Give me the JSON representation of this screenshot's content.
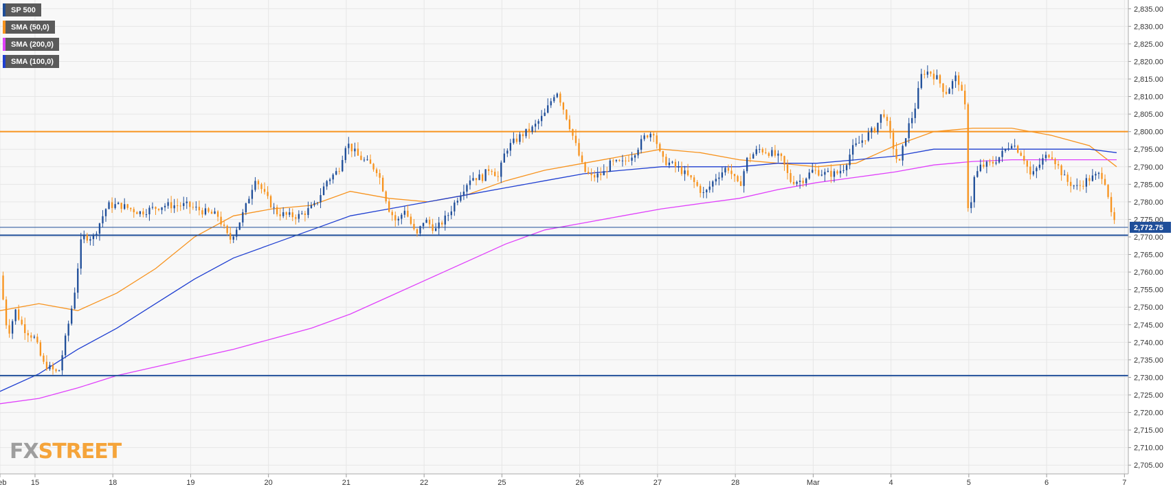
{
  "legend": [
    {
      "label": "SP 500",
      "color": "#1f4e99"
    },
    {
      "label": "SMA (50,0)",
      "color": "#f7931e"
    },
    {
      "label": "SMA (200,0)",
      "color": "#e040fb"
    },
    {
      "label": "SMA (100,0)",
      "color": "#1f3fd1"
    }
  ],
  "watermark": {
    "part1": "FX",
    "part2": "STREET"
  },
  "chart_data": {
    "type": "candlestick",
    "ylim": [
      2702.5,
      2837.5
    ],
    "y_ticks": [
      "2,705.00",
      "2,710.00",
      "2,715.00",
      "2,720.00",
      "2,725.00",
      "2,730.00",
      "2,735.00",
      "2,740.00",
      "2,745.00",
      "2,750.00",
      "2,755.00",
      "2,760.00",
      "2,765.00",
      "2,770.00",
      "2,775.00",
      "2,780.00",
      "2,785.00",
      "2,790.00",
      "2,795.00",
      "2,800.00",
      "2,805.00",
      "2,810.00",
      "2,815.00",
      "2,820.00",
      "2,825.00",
      "2,830.00",
      "2,835.00"
    ],
    "x_ticks": [
      {
        "label": "Feb",
        "pos": 0.0
      },
      {
        "label": "15",
        "pos": 0.45
      },
      {
        "label": "18",
        "pos": 1.45
      },
      {
        "label": "19",
        "pos": 2.45
      },
      {
        "label": "20",
        "pos": 3.45
      },
      {
        "label": "21",
        "pos": 4.45
      },
      {
        "label": "22",
        "pos": 5.45
      },
      {
        "label": "25",
        "pos": 6.45
      },
      {
        "label": "26",
        "pos": 7.45
      },
      {
        "label": "27",
        "pos": 8.45
      },
      {
        "label": "28",
        "pos": 9.45
      },
      {
        "label": "Mar",
        "pos": 10.45
      },
      {
        "label": "4",
        "pos": 11.45
      },
      {
        "label": "5",
        "pos": 12.45
      },
      {
        "label": "6",
        "pos": 13.45
      },
      {
        "label": "7",
        "pos": 14.45
      }
    ],
    "current_price": {
      "label": "2,772.75",
      "value": 2772.75
    },
    "horizontal_levels": [
      {
        "value": 2800,
        "color": "#f7931e"
      },
      {
        "value": 2770.5,
        "color": "#1f4e99"
      },
      {
        "value": 2730.5,
        "color": "#1f4e99"
      }
    ],
    "colors": {
      "up": "#1f4e99",
      "down": "#f7931e"
    },
    "anchors": [
      [
        0.0,
        2759
      ],
      [
        0.1,
        2742
      ],
      [
        0.2,
        2749
      ],
      [
        0.3,
        2744
      ],
      [
        0.45,
        2741
      ],
      [
        0.55,
        2734
      ],
      [
        0.75,
        2731
      ],
      [
        0.85,
        2742
      ],
      [
        0.95,
        2753
      ],
      [
        1.05,
        2770
      ],
      [
        1.2,
        2770
      ],
      [
        1.38,
        2779
      ],
      [
        1.55,
        2779
      ],
      [
        1.8,
        2777
      ],
      [
        2.1,
        2779
      ],
      [
        2.4,
        2779
      ],
      [
        2.65,
        2777
      ],
      [
        2.8,
        2776
      ],
      [
        2.95,
        2769
      ],
      [
        3.05,
        2773
      ],
      [
        3.15,
        2778
      ],
      [
        3.28,
        2787
      ],
      [
        3.4,
        2782
      ],
      [
        3.55,
        2777
      ],
      [
        3.7,
        2776
      ],
      [
        3.85,
        2776
      ],
      [
        4.05,
        2779
      ],
      [
        4.2,
        2786
      ],
      [
        4.35,
        2789
      ],
      [
        4.45,
        2797
      ],
      [
        4.6,
        2793
      ],
      [
        4.85,
        2789
      ],
      [
        5.0,
        2778
      ],
      [
        5.1,
        2774
      ],
      [
        5.2,
        2778
      ],
      [
        5.35,
        2770
      ],
      [
        5.45,
        2775
      ],
      [
        5.6,
        2772
      ],
      [
        5.75,
        2776
      ],
      [
        5.9,
        2782
      ],
      [
        6.05,
        2787
      ],
      [
        6.2,
        2787
      ],
      [
        6.3,
        2790
      ],
      [
        6.4,
        2787
      ],
      [
        6.5,
        2795
      ],
      [
        6.7,
        2799
      ],
      [
        6.85,
        2801
      ],
      [
        7.0,
        2805
      ],
      [
        7.15,
        2812
      ],
      [
        7.3,
        2803
      ],
      [
        7.4,
        2796
      ],
      [
        7.5,
        2789
      ],
      [
        7.6,
        2787
      ],
      [
        7.75,
        2788
      ],
      [
        7.85,
        2791
      ],
      [
        8.0,
        2791
      ],
      [
        8.15,
        2794
      ],
      [
        8.3,
        2799
      ],
      [
        8.4,
        2800
      ],
      [
        8.5,
        2792
      ],
      [
        8.6,
        2791
      ],
      [
        8.75,
        2789
      ],
      [
        8.9,
        2786
      ],
      [
        9.05,
        2782
      ],
      [
        9.2,
        2787
      ],
      [
        9.35,
        2790
      ],
      [
        9.5,
        2784
      ],
      [
        9.6,
        2792
      ],
      [
        9.75,
        2795
      ],
      [
        9.9,
        2794
      ],
      [
        10.05,
        2792
      ],
      [
        10.15,
        2786
      ],
      [
        10.3,
        2786
      ],
      [
        10.45,
        2789
      ],
      [
        10.6,
        2788
      ],
      [
        10.75,
        2788
      ],
      [
        10.85,
        2790
      ],
      [
        10.95,
        2795
      ],
      [
        11.1,
        2798
      ],
      [
        11.25,
        2801
      ],
      [
        11.35,
        2806
      ],
      [
        11.45,
        2798
      ],
      [
        11.55,
        2790
      ],
      [
        11.65,
        2800
      ],
      [
        11.75,
        2806
      ],
      [
        11.85,
        2817
      ],
      [
        11.95,
        2817
      ],
      [
        12.05,
        2815
      ],
      [
        12.15,
        2811
      ],
      [
        12.3,
        2816
      ],
      [
        12.4,
        2807
      ],
      [
        12.45,
        2772
      ],
      [
        12.5,
        2786
      ],
      [
        12.6,
        2790
      ],
      [
        12.75,
        2791
      ],
      [
        12.85,
        2793
      ],
      [
        13.0,
        2797
      ],
      [
        13.15,
        2793
      ],
      [
        13.25,
        2787
      ],
      [
        13.4,
        2792
      ],
      [
        13.5,
        2794
      ],
      [
        13.6,
        2790
      ],
      [
        13.7,
        2786
      ],
      [
        13.85,
        2784
      ],
      [
        13.95,
        2786
      ],
      [
        14.05,
        2787
      ],
      [
        14.15,
        2788
      ],
      [
        14.22,
        2785
      ],
      [
        14.28,
        2776
      ],
      [
        14.35,
        2773
      ]
    ],
    "sma": [
      {
        "name": "SMA (50,0)",
        "color": "#f7931e",
        "points": [
          [
            0.0,
            2749
          ],
          [
            0.5,
            2751
          ],
          [
            1.0,
            2749
          ],
          [
            1.5,
            2754
          ],
          [
            2.0,
            2761
          ],
          [
            2.5,
            2770
          ],
          [
            3.0,
            2776
          ],
          [
            3.5,
            2778
          ],
          [
            4.0,
            2779
          ],
          [
            4.5,
            2783
          ],
          [
            5.0,
            2781
          ],
          [
            5.5,
            2780
          ],
          [
            6.0,
            2782
          ],
          [
            6.5,
            2786
          ],
          [
            7.0,
            2789
          ],
          [
            7.5,
            2791
          ],
          [
            8.0,
            2793
          ],
          [
            8.5,
            2795
          ],
          [
            9.0,
            2794
          ],
          [
            9.5,
            2792
          ],
          [
            10.0,
            2791
          ],
          [
            10.5,
            2790
          ],
          [
            11.0,
            2791
          ],
          [
            11.5,
            2796
          ],
          [
            12.0,
            2800
          ],
          [
            12.5,
            2801
          ],
          [
            13.0,
            2801
          ],
          [
            13.5,
            2799
          ],
          [
            14.0,
            2796
          ],
          [
            14.35,
            2790
          ]
        ]
      },
      {
        "name": "SMA (100,0)",
        "color": "#1f3fd1",
        "points": [
          [
            0.0,
            2726
          ],
          [
            0.5,
            2731
          ],
          [
            1.0,
            2738
          ],
          [
            1.5,
            2744
          ],
          [
            2.0,
            2751
          ],
          [
            2.5,
            2758
          ],
          [
            3.0,
            2764
          ],
          [
            3.5,
            2768
          ],
          [
            4.0,
            2772
          ],
          [
            4.5,
            2776
          ],
          [
            5.0,
            2778
          ],
          [
            5.5,
            2780
          ],
          [
            6.0,
            2782
          ],
          [
            6.5,
            2784
          ],
          [
            7.0,
            2786
          ],
          [
            7.5,
            2788
          ],
          [
            8.0,
            2789
          ],
          [
            8.5,
            2790
          ],
          [
            9.0,
            2790
          ],
          [
            9.5,
            2790
          ],
          [
            10.0,
            2791
          ],
          [
            10.5,
            2791
          ],
          [
            11.0,
            2792
          ],
          [
            11.5,
            2793
          ],
          [
            12.0,
            2795
          ],
          [
            12.5,
            2795
          ],
          [
            13.0,
            2795
          ],
          [
            13.5,
            2795
          ],
          [
            14.0,
            2795
          ],
          [
            14.35,
            2794
          ]
        ]
      },
      {
        "name": "SMA (200,0)",
        "color": "#e040fb",
        "points": [
          [
            0.0,
            2722.5
          ],
          [
            0.5,
            2724
          ],
          [
            1.0,
            2727
          ],
          [
            1.5,
            2730.5
          ],
          [
            2.0,
            2733
          ],
          [
            2.5,
            2735.5
          ],
          [
            3.0,
            2738
          ],
          [
            3.5,
            2741
          ],
          [
            4.0,
            2744
          ],
          [
            4.5,
            2748
          ],
          [
            5.0,
            2753
          ],
          [
            5.5,
            2758
          ],
          [
            6.0,
            2763
          ],
          [
            6.5,
            2768
          ],
          [
            7.0,
            2772
          ],
          [
            7.5,
            2774
          ],
          [
            8.0,
            2776
          ],
          [
            8.5,
            2778
          ],
          [
            9.0,
            2779.5
          ],
          [
            9.5,
            2781
          ],
          [
            10.0,
            2783.5
          ],
          [
            10.5,
            2785.5
          ],
          [
            11.0,
            2787
          ],
          [
            11.5,
            2788.5
          ],
          [
            12.0,
            2790.5
          ],
          [
            12.5,
            2791.5
          ],
          [
            13.0,
            2792
          ],
          [
            13.5,
            2792
          ],
          [
            14.0,
            2792
          ],
          [
            14.35,
            2792
          ]
        ]
      }
    ]
  }
}
